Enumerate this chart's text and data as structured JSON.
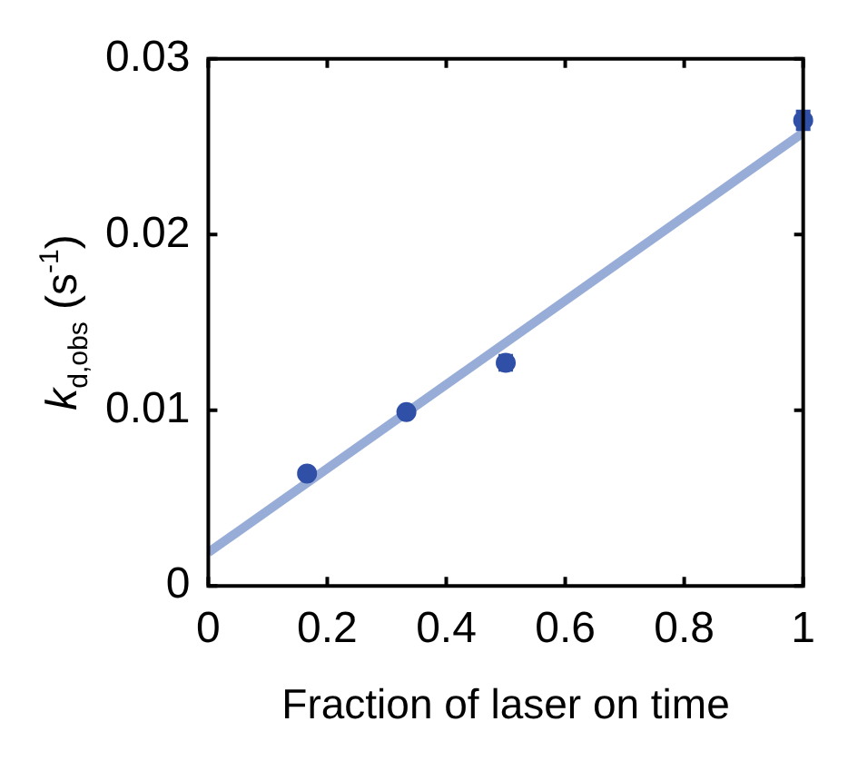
{
  "chart_data": {
    "type": "scatter",
    "xlabel": "Fraction of laser on time",
    "ylabel": "k$_{d,obs}$ (s$^{-1}$)",
    "x": [
      0.166,
      0.333,
      0.5,
      1.0
    ],
    "series": [
      {
        "marker": "circle",
        "color": "#3050a8",
        "values": [
          0.0064,
          0.0099,
          0.0127,
          0.0265
        ],
        "errors": [
          0.0002,
          0.0002,
          0.0004,
          0.0005
        ]
      },
      {
        "type": "line",
        "marker": "none",
        "color": "#98acd8",
        "x": [
          0,
          1
        ],
        "values": [
          0.0019,
          0.0258
        ]
      }
    ],
    "xlim": [
      0,
      1
    ],
    "ylim": [
      0,
      0.03
    ],
    "xticks": [
      0,
      0.2,
      0.4,
      0.6,
      0.8,
      1
    ],
    "yticks": [
      0,
      0.01,
      0.02,
      0.03
    ],
    "grid": false,
    "legend": false
  }
}
